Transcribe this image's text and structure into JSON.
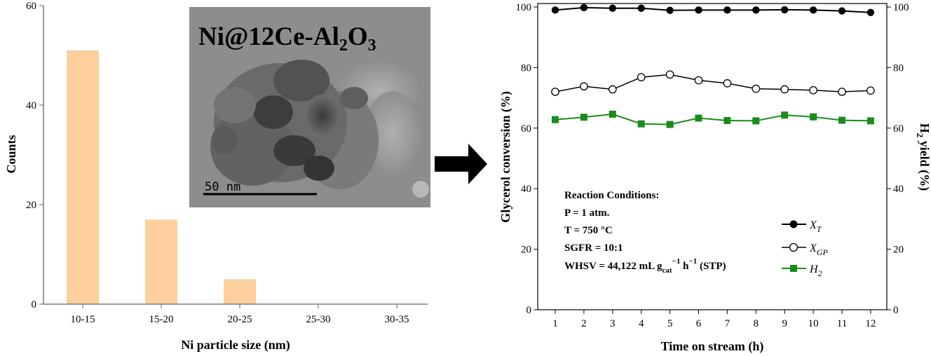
{
  "colors": {
    "bar": "#fccf9c",
    "xt": "#000000",
    "xgp": "#000000",
    "h2": "#1a8c1a",
    "arrow": "#000000",
    "tem_background": "#8c8c8c"
  },
  "chart_data": [
    {
      "type": "bar",
      "categories": [
        "10-15",
        "15-20",
        "20-25",
        "25-30",
        "30-35"
      ],
      "values": [
        51,
        17,
        5,
        0,
        0
      ],
      "ylim": [
        0,
        60
      ],
      "yticks": [
        "0",
        "20",
        "40",
        "60"
      ],
      "xlabel": "Ni particle size (nm)",
      "ylabel": "Counts",
      "grid": false,
      "inset": {
        "title_main": "Ni@12Ce-Al",
        "title_sub1": "2",
        "title_mid": "O",
        "title_sub2": "3",
        "scale_bar_label": "50 nm",
        "content": "TEM micrograph"
      }
    },
    {
      "type": "line",
      "x": [
        1,
        2,
        3,
        4,
        5,
        6,
        7,
        8,
        9,
        10,
        11,
        12
      ],
      "xticks": [
        "1",
        "2",
        "3",
        "4",
        "5",
        "6",
        "7",
        "8",
        "9",
        "10",
        "11",
        "12"
      ],
      "yticks": [
        "0",
        "20",
        "40",
        "60",
        "80",
        "100"
      ],
      "ylim": [
        0,
        100
      ],
      "xlabel": "Time on stream (h)",
      "ylabel": "Glycerol conversion (%)",
      "y2label_main": "H",
      "y2label_sub": "2",
      "y2label_rest": " yield (%)",
      "grid": false,
      "legend_position": "center-right",
      "series": [
        {
          "name": "X_T",
          "label_main": "X",
          "label_sub": "T",
          "marker": "filled-circle",
          "color": "#000000",
          "values": [
            99.0,
            99.8,
            99.6,
            99.6,
            98.9,
            99.0,
            99.0,
            99.0,
            99.1,
            99.0,
            98.7,
            98.2
          ]
        },
        {
          "name": "X_GP",
          "label_main": "X",
          "label_sub": "GP",
          "marker": "open-circle",
          "color": "#000000",
          "values": [
            72.0,
            73.8,
            72.8,
            76.8,
            77.7,
            75.8,
            74.8,
            73.0,
            72.8,
            72.5,
            72.0,
            72.4
          ]
        },
        {
          "name": "H2",
          "label_main": "H",
          "label_sub": "2",
          "marker": "filled-square",
          "color": "#1a8c1a",
          "values": [
            62.8,
            63.6,
            64.6,
            61.4,
            61.2,
            63.3,
            62.5,
            62.4,
            64.3,
            63.7,
            62.6,
            62.4
          ]
        }
      ],
      "annotation": {
        "heading": "Reaction Conditions:",
        "line1": "P = 1 atm.",
        "line2": "T = 750 °C",
        "line3": "SGFR = 10:1",
        "whsv_a": "WHSV = 44,122 mL g",
        "whsv_sub": "cat",
        "whsv_sup1": "−1",
        "whsv_b": " h",
        "whsv_sup2": "−1",
        "whsv_c": " (STP)"
      }
    }
  ]
}
